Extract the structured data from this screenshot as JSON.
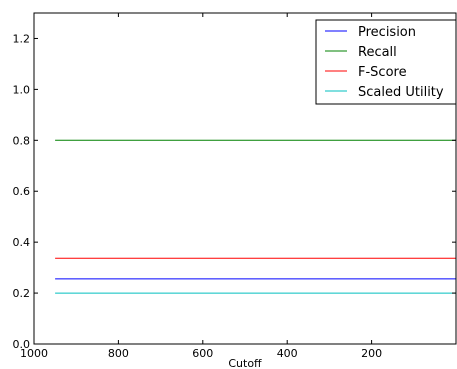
{
  "chart_data": {
    "type": "line",
    "title": "",
    "xlabel": "Cutoff",
    "ylabel": "",
    "xlim": [
      1000,
      0
    ],
    "ylim": [
      0.0,
      1.3
    ],
    "x_ticks": [
      1000,
      800,
      600,
      400,
      200
    ],
    "y_ticks": [
      0.0,
      0.2,
      0.4,
      0.6,
      0.8,
      1.0,
      1.2
    ],
    "x_tick_labels": [
      "1000",
      "800",
      "600",
      "400",
      "200"
    ],
    "y_tick_labels": [
      "0.0",
      "0.2",
      "0.4",
      "0.6",
      "0.8",
      "1.0",
      "1.2"
    ],
    "grid": false,
    "legend_position": "top-right",
    "x": [
      950,
      0
    ],
    "series": [
      {
        "name": "Precision",
        "color": "#0000ff",
        "values": [
          0.256,
          0.256
        ]
      },
      {
        "name": "Recall",
        "color": "#008000",
        "values": [
          0.8,
          0.8
        ]
      },
      {
        "name": "F-Score",
        "color": "#ff0000",
        "values": [
          0.337,
          0.337
        ]
      },
      {
        "name": "Scaled Utility",
        "color": "#00bfbf",
        "values": [
          0.2,
          0.2
        ]
      }
    ]
  }
}
